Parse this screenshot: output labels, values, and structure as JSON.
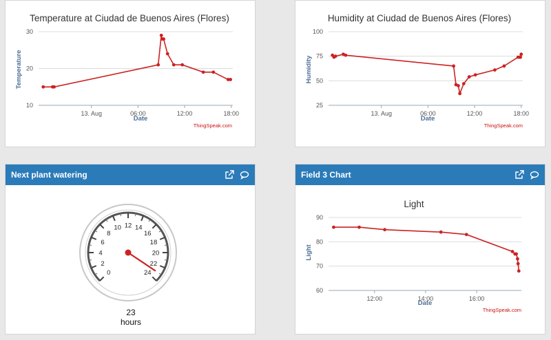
{
  "panels": {
    "temperature": {
      "chart_title": "Temperature at Ciudad de Buenos Aires (Flores)",
      "xlabel": "Date",
      "ylabel": "Temperature",
      "credit": "ThingSpeak.com"
    },
    "humidity": {
      "chart_title": "Humidity at Ciudad de Buenos Aires (Flores)",
      "xlabel": "Date",
      "ylabel": "Humidity",
      "credit": "ThingSpeak.com"
    },
    "watering": {
      "header_title": "Next plant watering",
      "value": "23",
      "units": "hours",
      "gauge_min": 0,
      "gauge_max": 24,
      "gauge_labels": [
        "0",
        "2",
        "4",
        "6",
        "8",
        "10",
        "12",
        "14",
        "16",
        "18",
        "20",
        "22",
        "24"
      ]
    },
    "field3": {
      "header_title": "Field 3 Chart",
      "chart_title": "Light",
      "xlabel": "Date",
      "ylabel": "Light",
      "credit": "ThingSpeak.com"
    }
  },
  "icons": {
    "external": "external-link-icon",
    "comment": "comment-icon"
  },
  "colors": {
    "header": "#2b7bb9",
    "series": "#cc2222",
    "axis_label": "#4d6f96"
  },
  "chart_data": [
    {
      "type": "line",
      "title": "Temperature at Ciudad de Buenos Aires (Flores)",
      "xlabel": "Date",
      "ylabel": "Temperature",
      "x_tick_labels": [
        "13. Aug",
        "06:00",
        "12:00",
        "18:00"
      ],
      "x_ticks": [
        0,
        6,
        12,
        18
      ],
      "y_ticks": [
        10,
        20,
        30
      ],
      "xlim": [
        -6.8,
        18.2
      ],
      "ylim": [
        10,
        30
      ],
      "x": [
        -6.2,
        -5.0,
        -4.8,
        8.6,
        9.0,
        9.1,
        9.3,
        9.8,
        10.6,
        11.7,
        14.4,
        15.7,
        17.6,
        17.9
      ],
      "values": [
        15,
        15,
        15,
        21,
        29,
        28,
        28,
        24,
        21,
        21,
        19,
        19,
        17,
        17
      ]
    },
    {
      "type": "line",
      "title": "Humidity at Ciudad de Buenos Aires (Flores)",
      "xlabel": "Date",
      "ylabel": "Humidity",
      "x_tick_labels": [
        "13. Aug",
        "06:00",
        "12:00",
        "18:00"
      ],
      "x_ticks": [
        0,
        6,
        12,
        18
      ],
      "y_ticks": [
        25,
        50,
        75,
        100
      ],
      "xlim": [
        -6.8,
        18.2
      ],
      "ylim": [
        25,
        100
      ],
      "x": [
        -6.3,
        -6.1,
        -5.9,
        -4.9,
        -4.6,
        9.3,
        9.6,
        9.9,
        10.1,
        10.6,
        11.3,
        12.1,
        14.6,
        15.8,
        17.6,
        17.8,
        17.9,
        18.0
      ],
      "values": [
        76,
        74,
        75,
        77,
        76,
        65,
        46,
        45,
        37,
        47,
        54,
        56,
        61,
        65,
        74,
        74,
        74,
        77
      ]
    },
    {
      "type": "line",
      "title": "Light",
      "xlabel": "Date",
      "ylabel": "Light",
      "x_tick_labels": [
        "12:00",
        "14:00",
        "16:00"
      ],
      "x_ticks": [
        12,
        14,
        16
      ],
      "y_ticks": [
        60,
        70,
        80,
        90
      ],
      "xlim": [
        10.2,
        17.75
      ],
      "ylim": [
        60,
        90
      ],
      "x": [
        10.4,
        11.4,
        12.4,
        14.6,
        15.6,
        17.4,
        17.5,
        17.55,
        17.6,
        17.62,
        17.65
      ],
      "values": [
        86,
        86,
        85,
        84,
        83,
        76,
        75,
        75,
        73,
        71,
        68
      ]
    }
  ]
}
